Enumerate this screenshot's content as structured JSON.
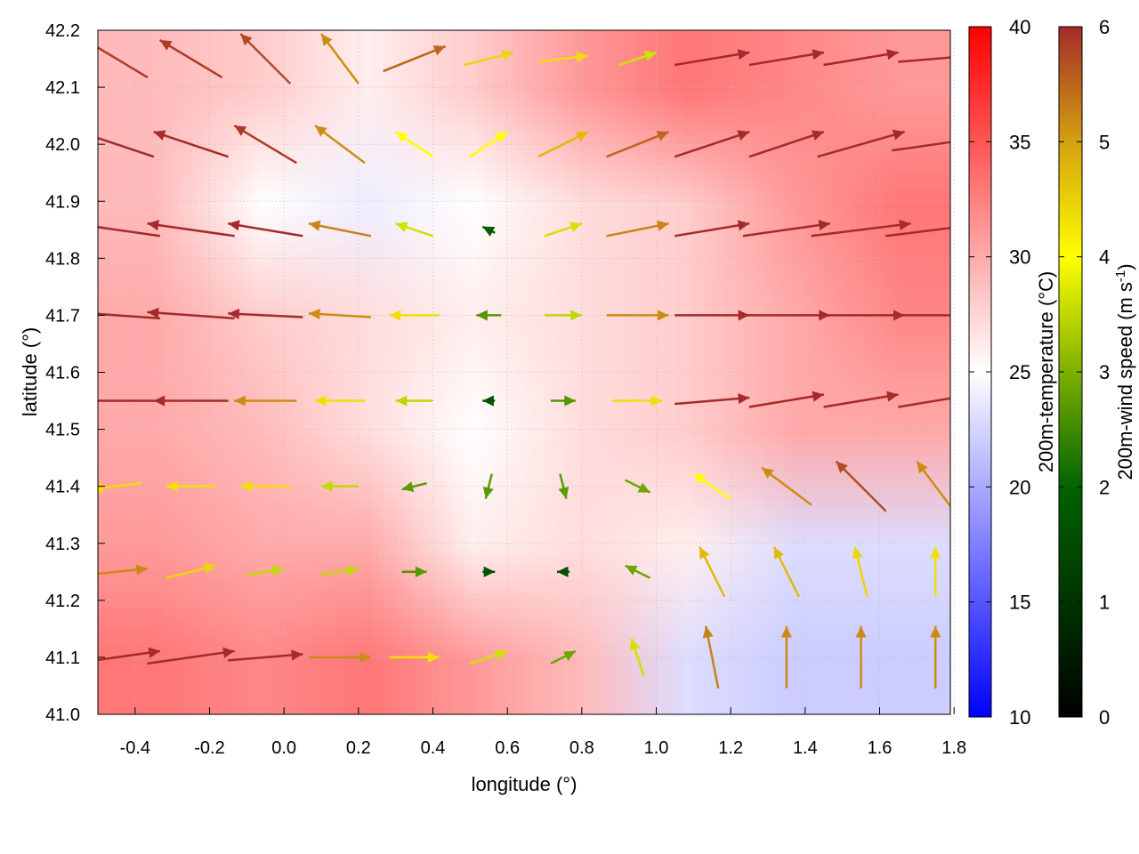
{
  "chart_data": {
    "type": "heatmap",
    "overlay": "vector field with contour lines",
    "xlabel": "longitude (°)",
    "ylabel": "latitude (°)",
    "xlim": [
      -0.5,
      1.79
    ],
    "ylim": [
      41.0,
      42.2
    ],
    "xticks": [
      "-0.4",
      "-0.2",
      "0.0",
      "0.2",
      "0.4",
      "0.6",
      "0.8",
      "1.0",
      "1.2",
      "1.4",
      "1.6",
      "1.8"
    ],
    "yticks": [
      "41.0",
      "41.1",
      "41.2",
      "41.3",
      "41.4",
      "41.5",
      "41.6",
      "41.7",
      "41.8",
      "41.9",
      "42.0",
      "42.1",
      "42.2"
    ],
    "grid": true,
    "temperature_colorbar": {
      "label": "200m-temperature (°C)",
      "range": [
        10,
        40
      ],
      "ticks": [
        "10",
        "15",
        "20",
        "25",
        "30",
        "35",
        "40"
      ],
      "colors": [
        "#0000ff",
        "#ffffff",
        "#ff0000"
      ]
    },
    "wind_colorbar": {
      "label_main": "200m-wind speed (m s",
      "label_sup": "-1",
      "label_end": ")",
      "range": [
        0,
        6
      ],
      "ticks": [
        "0",
        "1",
        "2",
        "3",
        "4",
        "5",
        "6"
      ],
      "colors": [
        "#000000",
        "#006400",
        "#7fb000",
        "#ffff00",
        "#d4a010",
        "#a52a2a"
      ]
    },
    "temperature_grid": {
      "lon": [
        -0.35,
        -0.05,
        0.25,
        0.55,
        0.85,
        1.15,
        1.45,
        1.75
      ],
      "lat": [
        42.1,
        41.9,
        41.7,
        41.5,
        41.3,
        41.1
      ],
      "values": [
        [
          29,
          28,
          26,
          28,
          31,
          33,
          32,
          31
        ],
        [
          29,
          25,
          24,
          25,
          27,
          28,
          31,
          33
        ],
        [
          30,
          28,
          27,
          26,
          27,
          28,
          30,
          32
        ],
        [
          30,
          29,
          27,
          25,
          27,
          28,
          30,
          30
        ],
        [
          31,
          30,
          30,
          26,
          27,
          26,
          23,
          23
        ],
        [
          33,
          32,
          33,
          31,
          29,
          23,
          22,
          22
        ]
      ]
    },
    "wind_grid": {
      "lon": [
        -0.45,
        -0.25,
        -0.05,
        0.15,
        0.35,
        0.55,
        0.75,
        0.95,
        1.15,
        1.35,
        1.55,
        1.75
      ],
      "lat": [
        42.15,
        42.0,
        41.85,
        41.7,
        41.55,
        41.4,
        41.25,
        41.1
      ],
      "u": [
        [
          -5,
          -5,
          -4,
          -3,
          5,
          4,
          4,
          3,
          6,
          6,
          6,
          6
        ],
        [
          -6,
          -6,
          -5,
          -4,
          -3,
          3,
          4,
          5,
          6,
          6,
          7,
          7
        ],
        [
          -7,
          -7,
          -6,
          -5,
          -3,
          -1,
          3,
          5,
          6,
          7,
          8,
          8
        ],
        [
          -7,
          -7,
          -6,
          -5,
          -4,
          -2,
          3,
          5,
          6,
          7,
          7,
          7
        ],
        [
          -6,
          -6,
          -5,
          -4,
          -3,
          -1,
          2,
          4,
          6,
          6,
          6,
          6
        ],
        [
          -4,
          -4,
          -4,
          -3,
          -2,
          -0.5,
          0.5,
          2,
          -3,
          -4,
          -4,
          -3
        ],
        [
          5,
          4,
          3,
          3,
          2,
          1,
          -1,
          -2,
          -2,
          -2,
          -1,
          0
        ],
        [
          7,
          7,
          6,
          5,
          4,
          3,
          2,
          -1,
          -1,
          0,
          0,
          0
        ]
      ],
      "v": [
        [
          3,
          3,
          4,
          4,
          2,
          1,
          0.5,
          1,
          1,
          1,
          1,
          0.5
        ],
        [
          2,
          2,
          3,
          3,
          2,
          2,
          2,
          2,
          2,
          2,
          2,
          1
        ],
        [
          1,
          1,
          1,
          1,
          1,
          0.5,
          1,
          1,
          1,
          1,
          1,
          1
        ],
        [
          0.5,
          0.5,
          0.3,
          0.3,
          0,
          0,
          0,
          0,
          0,
          0,
          0,
          0
        ],
        [
          0,
          0,
          0,
          0,
          0,
          0,
          0,
          0,
          0.5,
          1,
          1,
          1
        ],
        [
          -0.5,
          0,
          0,
          0,
          -0.5,
          -2,
          -2,
          -1,
          2,
          3,
          4,
          4
        ],
        [
          0.5,
          1,
          0.5,
          0.5,
          0,
          0,
          0,
          1,
          4,
          4,
          4,
          4
        ],
        [
          1,
          1,
          0.5,
          0,
          0,
          1,
          1,
          3,
          5,
          5,
          5,
          5
        ]
      ]
    }
  }
}
